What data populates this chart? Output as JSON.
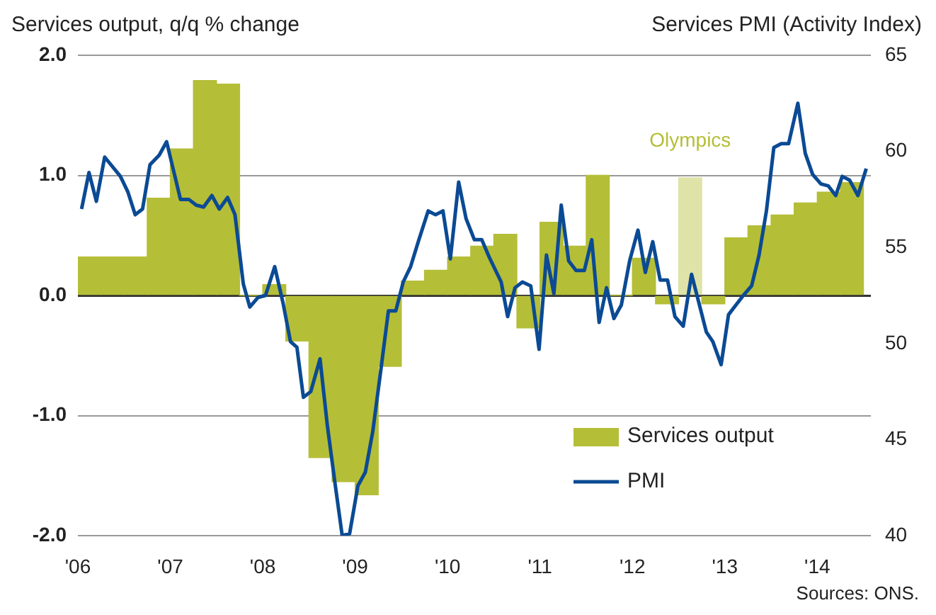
{
  "chart_data": {
    "type": "bar",
    "ylabel": "Services output, q/q % change",
    "y2label": "Services PMI (Activity Index)",
    "xlim": [
      2006,
      2014.58
    ],
    "xticks": [
      {
        "value": 2006,
        "label": "'06"
      },
      {
        "value": 2007,
        "label": "'07"
      },
      {
        "value": 2008,
        "label": "'08"
      },
      {
        "value": 2009,
        "label": "'09"
      },
      {
        "value": 2010,
        "label": "'10"
      },
      {
        "value": 2011,
        "label": "'11"
      },
      {
        "value": 2012,
        "label": "'12"
      },
      {
        "value": 2013,
        "label": "'13"
      },
      {
        "value": 2014,
        "label": "'14"
      }
    ],
    "ylim": [
      -2,
      2
    ],
    "yticks": [
      {
        "value": -2,
        "label": "-2.0"
      },
      {
        "value": -1,
        "label": "-1.0"
      },
      {
        "value": 0,
        "label": "0.0"
      },
      {
        "value": 1,
        "label": "1.0"
      },
      {
        "value": 2,
        "label": "2.0"
      }
    ],
    "y2lim": [
      40,
      65
    ],
    "y2ticks": [
      40,
      45,
      50,
      55,
      60,
      65
    ],
    "grid": "y",
    "legend": "bottom right",
    "annotations": [
      {
        "text": "Olympics",
        "x": 2012.625,
        "y": 0.98
      },
      "Sources: ONS."
    ],
    "series": [
      {
        "name": "Services output",
        "color": "#b5be37",
        "colors": [
          "#b5be37",
          "#b5be37",
          "#b5be37",
          "#b5be37",
          "#b5be37",
          "#b5be37",
          "#b5be37",
          "#b5be37",
          "#b5be37",
          "#b5be37",
          "#b5be37",
          "#b5be37",
          "#b5be37",
          "#b5be37",
          "#b5be37",
          "#b5be37",
          "#b5be37",
          "#b5be37",
          "#b5be37",
          "#b5be37",
          "#b5be37",
          "#b5be37",
          "#b5be37",
          "#b5be37",
          "#b5be37",
          "#b5be37",
          "#dfe3a8",
          "#b5be37",
          "#b5be37",
          "#b5be37",
          "#b5be37",
          "#b5be37",
          "#b5be37",
          "#b5be37"
        ],
        "x": [
          2006.125,
          2006.375,
          2006.625,
          2006.875,
          2007.125,
          2007.375,
          2007.625,
          2007.875,
          2008.125,
          2008.375,
          2008.625,
          2008.875,
          2009.125,
          2009.375,
          2009.625,
          2009.875,
          2010.125,
          2010.375,
          2010.625,
          2010.875,
          2011.125,
          2011.375,
          2011.625,
          2011.875,
          2012.125,
          2012.375,
          2012.625,
          2012.875,
          2013.125,
          2013.375,
          2013.625,
          2013.875,
          2014.125,
          2014.375
        ],
        "values": [
          0.32,
          0.32,
          0.32,
          0.81,
          1.22,
          1.79,
          1.76,
          0,
          0.09,
          -0.38,
          -1.35,
          -1.55,
          -1.66,
          -0.59,
          0.12,
          0.21,
          0.32,
          0.41,
          0.51,
          -0.27,
          0.61,
          0.41,
          1.0,
          0,
          0.31,
          -0.07,
          0.98,
          -0.07,
          0.48,
          0.58,
          0.67,
          0.77,
          0.86,
          0.94
        ]
      },
      {
        "name": "PMI",
        "type": "line",
        "axis": "y2",
        "color": "#0b4a94",
        "marker": "none",
        "line_style": "solid",
        "x": [
          2006.04,
          2006.12,
          2006.2,
          2006.29,
          2006.46,
          2006.54,
          2006.62,
          2006.7,
          2006.78,
          2006.88,
          2006.96,
          2007.03,
          2007.11,
          2007.2,
          2007.28,
          2007.36,
          2007.45,
          2007.53,
          2007.62,
          2007.7,
          2007.79,
          2007.86,
          2007.95,
          2008.03,
          2008.13,
          2008.22,
          2008.3,
          2008.37,
          2008.44,
          2008.52,
          2008.62,
          2008.7,
          2008.78,
          2008.86,
          2008.94,
          2009.03,
          2009.11,
          2009.19,
          2009.28,
          2009.36,
          2009.44,
          2009.52,
          2009.6,
          2009.69,
          2009.79,
          2009.87,
          2009.95,
          2010.03,
          2010.12,
          2010.2,
          2010.29,
          2010.37,
          2010.45,
          2010.58,
          2010.65,
          2010.73,
          2010.81,
          2010.9,
          2010.99,
          2011.07,
          2011.15,
          2011.23,
          2011.31,
          2011.39,
          2011.48,
          2011.56,
          2011.64,
          2011.72,
          2011.8,
          2011.88,
          2011.97,
          2012.06,
          2012.14,
          2012.22,
          2012.3,
          2012.38,
          2012.46,
          2012.55,
          2012.64,
          2012.72,
          2012.8,
          2012.87,
          2012.96,
          2013.04,
          2013.12,
          2013.2,
          2013.29,
          2013.37,
          2013.45,
          2013.53,
          2013.61,
          2013.69,
          2013.79,
          2013.87,
          2013.95,
          2014.04,
          2014.12,
          2014.2,
          2014.27,
          2014.35,
          2014.44,
          2014.53
        ],
        "values": [
          57.0,
          58.9,
          57.4,
          59.7,
          58.7,
          57.9,
          56.7,
          57.0,
          59.3,
          59.8,
          60.5,
          59.1,
          57.5,
          57.5,
          57.2,
          57.1,
          57.7,
          57.0,
          57.6,
          56.7,
          53.1,
          51.9,
          52.4,
          52.5,
          54.0,
          52.1,
          50.1,
          49.8,
          47.2,
          47.5,
          49.2,
          45.7,
          42.8,
          40.0,
          40.1,
          42.6,
          43.3,
          45.4,
          48.7,
          51.7,
          51.7,
          53.2,
          54.0,
          55.4,
          56.9,
          56.7,
          56.9,
          54.4,
          58.4,
          56.5,
          55.4,
          55.4,
          54.5,
          53.2,
          51.4,
          52.9,
          53.2,
          53.0,
          49.7,
          54.6,
          52.6,
          57.2,
          54.3,
          53.8,
          53.8,
          55.4,
          51.1,
          52.9,
          51.3,
          52.0,
          54.3,
          55.9,
          53.7,
          55.3,
          53.3,
          53.3,
          51.4,
          50.9,
          53.6,
          52.1,
          50.6,
          50.1,
          48.9,
          51.5,
          52.0,
          52.5,
          53.0,
          54.6,
          56.9,
          60.2,
          60.4,
          60.4,
          62.5,
          59.9,
          58.8,
          58.3,
          58.2,
          57.7,
          58.7,
          58.5,
          57.7,
          59.1
        ]
      }
    ]
  }
}
